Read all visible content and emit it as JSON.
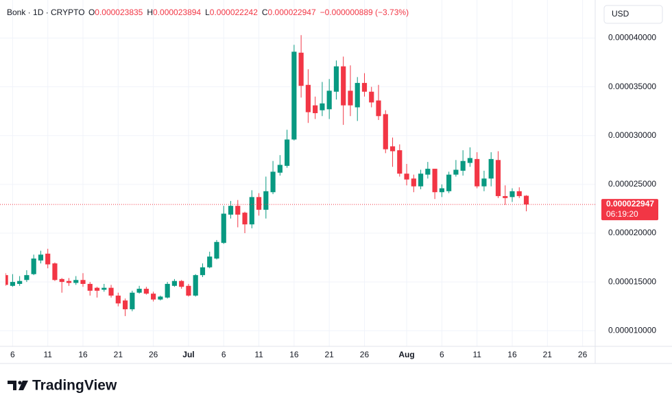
{
  "header": {
    "symbol": "Bonk · 1D · CRYPTO",
    "fields": [
      {
        "key": "O",
        "value": "0.000023835"
      },
      {
        "key": "H",
        "value": "0.000023894"
      },
      {
        "key": "L",
        "value": "0.000022242"
      },
      {
        "key": "C",
        "value": "0.000022947"
      }
    ],
    "change": "−0.000000889 (−3.73%)"
  },
  "currency": "USD",
  "brand": "TradingView",
  "chart_data": {
    "type": "candlestick",
    "categories": [
      null,
      "6",
      null,
      null,
      null,
      null,
      "11",
      null,
      null,
      null,
      null,
      "16",
      null,
      null,
      null,
      null,
      "21",
      null,
      null,
      null,
      null,
      "26",
      null,
      null,
      null,
      null,
      "Jul",
      null,
      null,
      null,
      null,
      "6",
      null,
      null,
      null,
      null,
      "11",
      null,
      null,
      null,
      null,
      "16",
      null,
      null,
      null,
      null,
      "21",
      null,
      null,
      null,
      null,
      "26",
      null,
      null,
      null,
      null,
      null,
      "Aug",
      null,
      null,
      null,
      null,
      "6",
      null,
      null,
      null,
      null,
      "11",
      null,
      null,
      null,
      null,
      "16",
      null,
      null,
      null,
      null,
      "21",
      null,
      null,
      null,
      null,
      "26",
      null
    ],
    "open": [
      1.57e-05,
      1.46e-05,
      1.48e-05,
      1.52e-05,
      1.58e-05,
      1.72e-05,
      1.79e-05,
      1.69e-05,
      1.53e-05,
      1.51e-05,
      1.49e-05,
      1.52e-05,
      1.48e-05,
      1.44e-05,
      1.42e-05,
      1.44e-05,
      1.36e-05,
      1.31e-05,
      1.22e-05,
      1.39e-05,
      1.43e-05,
      1.38e-05,
      1.32e-05,
      1.34e-05,
      1.46e-05,
      1.51e-05,
      1.46e-05,
      1.36e-05,
      1.57e-05,
      1.65e-05,
      1.74e-05,
      1.9e-05,
      2.19e-05,
      2.28e-05,
      2.21e-05,
      2.09e-05,
      2.37e-05,
      2.24e-05,
      2.42e-05,
      2.62e-05,
      2.69e-05,
      2.96e-05,
      3.85e-05,
      3.52e-05,
      3.31e-05,
      3.26e-05,
      3.27e-05,
      3.45e-05,
      3.71e-05,
      3.46e-05,
      3.29e-05,
      3.54e-05,
      3.45e-05,
      3.36e-05,
      3.22e-05,
      2.89e-05,
      2.85e-05,
      2.61e-05,
      2.56e-05,
      2.48e-05,
      2.6e-05,
      2.66e-05,
      2.42e-05,
      2.43e-05,
      2.6e-05,
      2.64e-05,
      2.72e-05,
      2.76e-05,
      2.48e-05,
      2.56e-05,
      2.75e-05,
      2.38e-05,
      2.37e-05,
      2.43e-05,
      2.3835e-05,
      null,
      null,
      null,
      null,
      null,
      null,
      null,
      null,
      null
    ],
    "high": [
      1.59e-05,
      1.58e-05,
      1.56e-05,
      1.62e-05,
      1.78e-05,
      1.82e-05,
      1.84e-05,
      1.7e-05,
      1.54e-05,
      1.54e-05,
      1.56e-05,
      1.59e-05,
      1.5e-05,
      1.45e-05,
      1.48e-05,
      1.47e-05,
      1.39e-05,
      1.33e-05,
      1.41e-05,
      1.46e-05,
      1.45e-05,
      1.4e-05,
      1.36e-05,
      1.5e-05,
      1.53e-05,
      1.52e-05,
      1.48e-05,
      1.58e-05,
      1.69e-05,
      1.81e-05,
      1.93e-05,
      2.28e-05,
      2.33e-05,
      2.34e-05,
      2.22e-05,
      2.44e-05,
      2.41e-05,
      2.58e-05,
      2.74e-05,
      2.8e-05,
      3.06e-05,
      3.93e-05,
      4.03e-05,
      3.68e-05,
      3.4e-05,
      3.55e-05,
      3.58e-05,
      3.77e-05,
      3.81e-05,
      3.72e-05,
      3.6e-05,
      3.64e-05,
      3.5e-05,
      3.52e-05,
      3.26e-05,
      2.98e-05,
      2.91e-05,
      2.71e-05,
      2.6e-05,
      2.65e-05,
      2.73e-05,
      2.66e-05,
      2.5e-05,
      2.63e-05,
      2.75e-05,
      2.85e-05,
      2.88e-05,
      2.83e-05,
      2.64e-05,
      2.83e-05,
      2.84e-05,
      2.49e-05,
      2.46e-05,
      2.47e-05,
      2.3894e-05,
      null,
      null,
      null,
      null,
      null,
      null,
      null,
      null,
      null
    ],
    "low": [
      1.46e-05,
      1.45e-05,
      1.46e-05,
      1.5e-05,
      1.57e-05,
      1.69e-05,
      1.64e-05,
      1.51e-05,
      1.39e-05,
      1.46e-05,
      1.47e-05,
      1.45e-05,
      1.36e-05,
      1.34e-05,
      1.4e-05,
      1.34e-05,
      1.25e-05,
      1.15e-05,
      1.2e-05,
      1.38e-05,
      1.37e-05,
      1.3e-05,
      1.31e-05,
      1.33e-05,
      1.45e-05,
      1.43e-05,
      1.35e-05,
      1.35e-05,
      1.55e-05,
      1.64e-05,
      1.73e-05,
      1.89e-05,
      2.15e-05,
      2.06e-05,
      2e-05,
      2.05e-05,
      2.18e-05,
      2.15e-05,
      2.4e-05,
      2.59e-05,
      2.67e-05,
      2.95e-05,
      3.39e-05,
      3.13e-05,
      3.17e-05,
      3.2e-05,
      3.17e-05,
      3.37e-05,
      3.11e-05,
      3.2e-05,
      3.15e-05,
      3.4e-05,
      3.29e-05,
      3.16e-05,
      2.82e-05,
      2.68e-05,
      2.58e-05,
      2.49e-05,
      2.42e-05,
      2.45e-05,
      2.56e-05,
      2.35e-05,
      2.37e-05,
      2.41e-05,
      2.58e-05,
      2.59e-05,
      2.68e-05,
      2.46e-05,
      2.43e-05,
      2.48e-05,
      2.36e-05,
      2.29e-05,
      2.32e-05,
      2.36e-05,
      2.2242e-05,
      null,
      null,
      null,
      null,
      null,
      null,
      null,
      null,
      null
    ],
    "close": [
      1.47e-05,
      1.5e-05,
      1.51e-05,
      1.57e-05,
      1.74e-05,
      1.78e-05,
      1.68e-05,
      1.52e-05,
      1.5e-05,
      1.49e-05,
      1.52e-05,
      1.48e-05,
      1.41e-05,
      1.41e-05,
      1.44e-05,
      1.36e-05,
      1.28e-05,
      1.22e-05,
      1.39e-05,
      1.43e-05,
      1.38e-05,
      1.32e-05,
      1.35e-05,
      1.48e-05,
      1.51e-05,
      1.45e-05,
      1.36e-05,
      1.57e-05,
      1.65e-05,
      1.76e-05,
      1.91e-05,
      2.2e-05,
      2.28e-05,
      2.19e-05,
      2.09e-05,
      2.37e-05,
      2.24e-05,
      2.43e-05,
      2.63e-05,
      2.7e-05,
      2.96e-05,
      3.86e-05,
      3.51e-05,
      3.24e-05,
      3.23e-05,
      3.33e-05,
      3.46e-05,
      3.71e-05,
      3.31e-05,
      3.31e-05,
      3.54e-05,
      3.45e-05,
      3.34e-05,
      3.2e-05,
      2.86e-05,
      2.84e-05,
      2.61e-05,
      2.55e-05,
      2.48e-05,
      2.61e-05,
      2.66e-05,
      2.42e-05,
      2.46e-05,
      2.6e-05,
      2.65e-05,
      2.74e-05,
      2.77e-05,
      2.48e-05,
      2.56e-05,
      2.76e-05,
      2.38e-05,
      2.36e-05,
      2.43e-05,
      2.38e-05,
      2.2947e-05,
      null,
      null,
      null,
      null,
      null,
      null,
      null,
      null,
      null
    ],
    "up_color": "#089981",
    "down_color": "#f23645",
    "ylim": [
      8.4e-06,
      4.39e-05
    ],
    "yticks": [
      {
        "value": 1e-05,
        "label": "0.000010000"
      },
      {
        "value": 1.5e-05,
        "label": "0.000015000"
      },
      {
        "value": 2e-05,
        "label": "0.000020000"
      },
      {
        "value": 2.5e-05,
        "label": "0.000025000"
      },
      {
        "value": 3e-05,
        "label": "0.000030000"
      },
      {
        "value": 3.5e-05,
        "label": "0.000035000"
      },
      {
        "value": 4e-05,
        "label": "0.000040000"
      }
    ],
    "grid": true,
    "last_price": {
      "label": "0.000022947",
      "countdown": "06:19:20"
    }
  }
}
